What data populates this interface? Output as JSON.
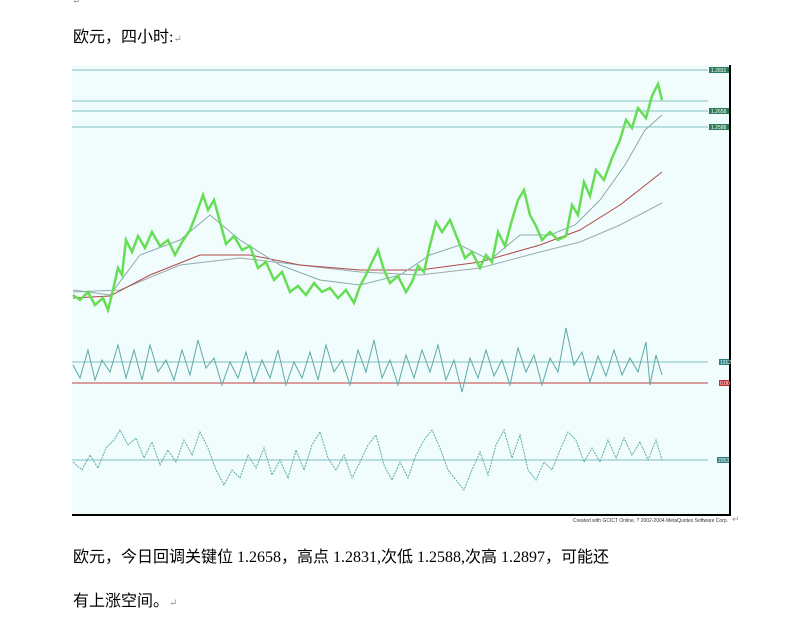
{
  "heading": "欧元，四小时:",
  "return_mark": "↵",
  "figure": {
    "level_labels": [
      "1.2831",
      "1.2658",
      "1.2588"
    ],
    "indicator_labels": [
      "1912",
      "0.00",
      "2953"
    ],
    "credit": "Created with GCICT Online, ? 2002-2004 MetaQuotes Software Corp."
  },
  "paragraph": [
    "欧元，今日回调关键位 1.2658，高点 1.2831,次低 1.2588,次高 1.2897，可能还",
    "有上涨空间。"
  ]
}
